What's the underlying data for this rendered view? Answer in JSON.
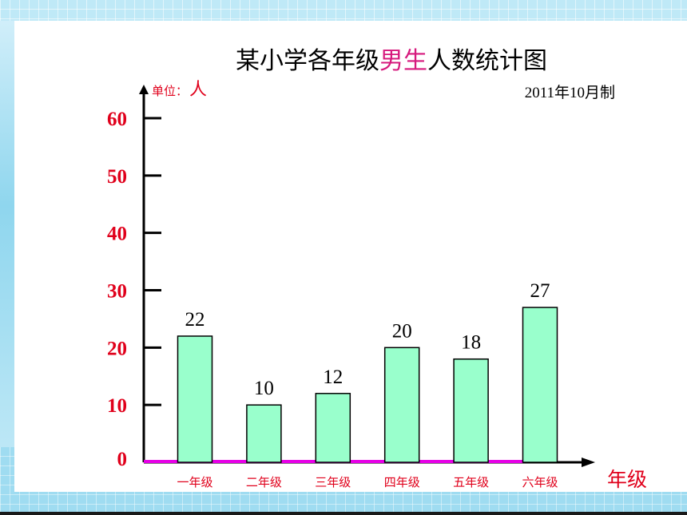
{
  "chart_data": {
    "type": "bar",
    "title": "某小学各年级男生人数统计图",
    "title_parts": [
      "某小学各年级",
      "男生",
      "人数统计图"
    ],
    "ylabel_prefix": "单位：",
    "ylabel": "人",
    "xlabel": "年级",
    "note": "2011年10月制",
    "categories": [
      "一年级",
      "二年级",
      "三年级",
      "四年级",
      "五年级",
      "六年级"
    ],
    "values": [
      22,
      10,
      12,
      20,
      18,
      27
    ],
    "ylim": [
      0,
      60
    ],
    "yticks": [
      0,
      10,
      20,
      30,
      40,
      50,
      60
    ],
    "grid": false,
    "colors": {
      "bar_fill": "#99ffcc",
      "bar_stroke": "#000000",
      "axis": "#000000",
      "baseline": "#e600e6",
      "tick_label": "#e0001b",
      "title_highlight": "#d6197d"
    }
  }
}
